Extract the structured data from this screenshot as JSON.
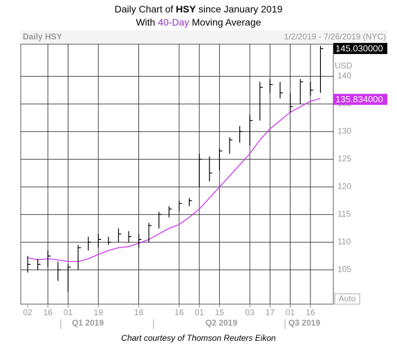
{
  "chart_data": {
    "type": "ohlc",
    "title": [
      "Daily Chart of ",
      "HSY",
      " since January 2019"
    ],
    "subtitle": [
      "With ",
      "40-Day",
      " Moving Average"
    ],
    "header_left": "Daily HSY",
    "header_right": "1/2/2019 - 7/26/2019 (NYC)",
    "currency": "USD",
    "scale_button": "Auto",
    "footer": "Chart courtesy of Thomson Reuters Eikon",
    "categories": [
      "02",
      null,
      "16",
      null,
      "01",
      null,
      null,
      "19",
      null,
      null,
      null,
      "18",
      null,
      null,
      null,
      "16",
      null,
      "01",
      null,
      "15",
      null,
      null,
      "03",
      null,
      "17",
      null,
      "01",
      null,
      "16",
      null
    ],
    "period_labels": [
      "Q1 2019",
      "Q2 2019",
      "Q3 2019"
    ],
    "high": [
      107.5,
      107,
      108.5,
      106.5,
      106,
      109.5,
      111,
      111.5,
      111,
      112.5,
      112,
      111.5,
      113.5,
      115.5,
      116.5,
      117.5,
      118,
      126,
      125.5,
      127,
      129,
      131,
      133,
      139,
      139.5,
      139,
      137,
      139.5,
      139,
      145.5
    ],
    "low": [
      104.5,
      105,
      105.5,
      103,
      101,
      105,
      108.5,
      109,
      109.5,
      110,
      110,
      109,
      110,
      112.5,
      114.5,
      115.5,
      116.5,
      120,
      121,
      123,
      126,
      128,
      127.5,
      132,
      137,
      136,
      133.5,
      135,
      136.5,
      137
    ],
    "close": [
      106,
      106,
      107.5,
      105,
      105.5,
      109,
      110,
      110.5,
      110,
      111.5,
      111,
      110.5,
      113,
      115,
      116,
      117,
      117.5,
      125,
      122.5,
      126.5,
      128.5,
      130,
      132,
      138,
      138.5,
      137,
      134.5,
      139,
      137.5,
      145
    ],
    "color": "#000000",
    "moving_average": {
      "color": "#cc33ee",
      "values": [
        107.2,
        106.8,
        107,
        106.8,
        106.5,
        106.5,
        107,
        107.8,
        108.5,
        109,
        109.2,
        109.8,
        110.5,
        111.5,
        112.5,
        113.2,
        114.5,
        116,
        118,
        120,
        122,
        124,
        126,
        128.5,
        130.5,
        132,
        133.5,
        134.5,
        135.5,
        136
      ]
    },
    "last_price": {
      "value": 145.03,
      "label": "145.030000"
    },
    "ma_last": {
      "value": 135.834,
      "label": "135.834000"
    },
    "ylim": [
      98.8,
      145.8
    ],
    "yticks": [
      105,
      110,
      115,
      120,
      125,
      130,
      135,
      140
    ],
    "grid": true
  }
}
